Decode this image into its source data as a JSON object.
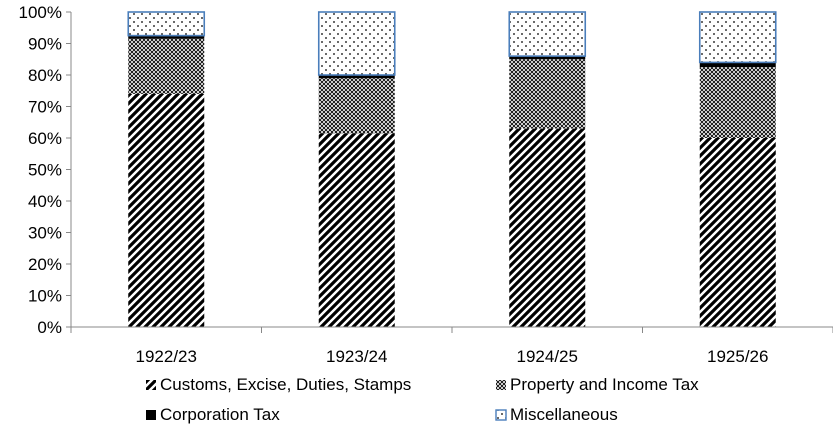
{
  "chart_data": {
    "type": "bar",
    "stacked": true,
    "categories": [
      "1922/23",
      "1923/24",
      "1924/25",
      "1925/26"
    ],
    "series": [
      {
        "name": "Customs, Excise, Duties, Stamps",
        "values": [
          74,
          61.5,
          63,
          60
        ],
        "pattern": "diagonal-hatch",
        "color": "#000000"
      },
      {
        "name": "Property and Income Tax",
        "values": [
          17.5,
          17.5,
          22,
          22.5
        ],
        "pattern": "crosshatch",
        "color": "#000000"
      },
      {
        "name": "Corporation Tax",
        "values": [
          1,
          1,
          1,
          1.5
        ],
        "pattern": "solid",
        "color": "#000000"
      },
      {
        "name": "Miscellaneous",
        "values": [
          7.5,
          20,
          14,
          16
        ],
        "pattern": "dots",
        "color": "#4a7ebb"
      }
    ],
    "yticks": [
      "0%",
      "10%",
      "20%",
      "30%",
      "40%",
      "50%",
      "60%",
      "70%",
      "80%",
      "90%",
      "100%"
    ],
    "ylim": [
      0,
      100
    ],
    "grid": false,
    "legend_position": "bottom"
  }
}
